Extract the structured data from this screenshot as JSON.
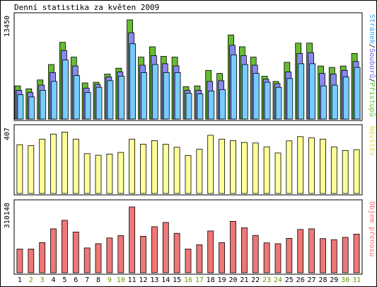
{
  "title": "Denní statistika za květen 2009",
  "colors": {
    "hits": "#66bb33",
    "files": "#8888ee",
    "pages": "#77ccff",
    "visits": "#ffff99",
    "volume": "#ee7777",
    "weekend_label": "#669900",
    "label_hits": "#66bb33",
    "label_files": "#6666ee",
    "label_pages": "#33aaee",
    "label_visits": "#dddd55",
    "label_volume": "#ee7777",
    "separator": "#000000"
  },
  "chart_data": [
    {
      "type": "bar",
      "name": "top",
      "ymax_label": "13450",
      "ymax": 13450,
      "legend_label": "Stránek/Souborů/Přístupů",
      "legend_parts": [
        "Stránek",
        "/",
        "Souborů",
        "/",
        "Přístupů"
      ],
      "categories": [
        "1",
        "2",
        "3",
        "4",
        "5",
        "6",
        "7",
        "8",
        "9",
        "10",
        "11",
        "12",
        "13",
        "14",
        "15",
        "16",
        "17",
        "18",
        "19",
        "20",
        "21",
        "22",
        "23",
        "24",
        "25",
        "26",
        "27",
        "28",
        "29",
        "30",
        "31"
      ],
      "series": [
        {
          "name": "Přístupů",
          "values": [
            4500,
            4100,
            5300,
            7400,
            10400,
            8400,
            4900,
            5000,
            6100,
            6900,
            13450,
            8400,
            9800,
            8500,
            8400,
            4400,
            4500,
            6600,
            6200,
            11400,
            9800,
            8400,
            5800,
            5100,
            7700,
            10300,
            10300,
            7200,
            7000,
            7200,
            8900
          ]
        },
        {
          "name": "Souborů",
          "values": [
            3900,
            3600,
            4600,
            6300,
            9300,
            7200,
            4200,
            4700,
            5700,
            6400,
            11700,
            7300,
            8600,
            7500,
            7200,
            3900,
            3900,
            5100,
            5200,
            10000,
            8600,
            7300,
            5400,
            4800,
            6400,
            8900,
            9000,
            6200,
            6100,
            6600,
            7800
          ]
        },
        {
          "name": "Stránek",
          "values": [
            3300,
            3000,
            3900,
            5100,
            8000,
            5900,
            3600,
            4300,
            5200,
            5800,
            10200,
            6300,
            7400,
            6300,
            6300,
            3500,
            3400,
            3800,
            4000,
            8700,
            7400,
            6200,
            5000,
            4300,
            5500,
            7500,
            7500,
            4500,
            4600,
            5700,
            7000
          ]
        }
      ]
    },
    {
      "type": "bar",
      "name": "visits",
      "ymax_label": "407",
      "ymax": 407,
      "legend_label": "Návštěv",
      "categories": [
        "1",
        "2",
        "3",
        "4",
        "5",
        "6",
        "7",
        "8",
        "9",
        "10",
        "11",
        "12",
        "13",
        "14",
        "15",
        "16",
        "17",
        "18",
        "19",
        "20",
        "21",
        "22",
        "23",
        "24",
        "25",
        "26",
        "27",
        "28",
        "29",
        "30",
        "31"
      ],
      "series": [
        {
          "name": "Návštěv",
          "values": [
            322,
            316,
            359,
            392,
            405,
            359,
            263,
            252,
            260,
            271,
            359,
            325,
            349,
            325,
            305,
            251,
            292,
            384,
            359,
            349,
            337,
            333,
            308,
            267,
            347,
            375,
            367,
            359,
            308,
            284,
            289
          ]
        }
      ]
    },
    {
      "type": "bar",
      "name": "volume",
      "ymax_label": "310148",
      "ymax": 310148,
      "legend_label": "Objem přenosu",
      "categories": [
        "1",
        "2",
        "3",
        "4",
        "5",
        "6",
        "7",
        "8",
        "9",
        "10",
        "11",
        "12",
        "13",
        "14",
        "15",
        "16",
        "17",
        "18",
        "19",
        "20",
        "21",
        "22",
        "23",
        "24",
        "25",
        "26",
        "27",
        "28",
        "29",
        "30",
        "31"
      ],
      "series": [
        {
          "name": "Objem přenosu",
          "values": [
            112000,
            112000,
            142000,
            207000,
            247000,
            192000,
            117000,
            137000,
            164000,
            175000,
            310148,
            172000,
            217000,
            237000,
            186000,
            112000,
            132000,
            197000,
            142000,
            242000,
            212000,
            176000,
            141000,
            137000,
            162000,
            204000,
            207000,
            161000,
            156000,
            167000,
            182000
          ]
        }
      ]
    }
  ],
  "weekend_days": [
    "2",
    "3",
    "9",
    "10",
    "16",
    "17",
    "23",
    "24",
    "30",
    "31"
  ]
}
